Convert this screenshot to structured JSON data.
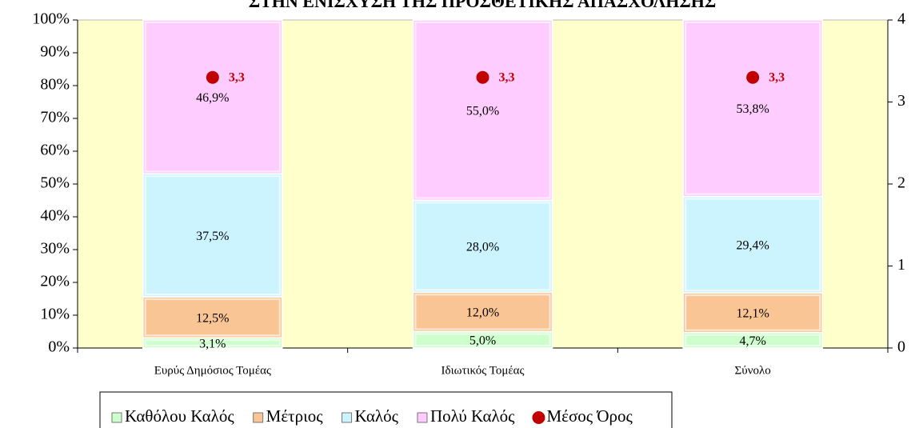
{
  "chart_data": {
    "type": "bar",
    "stacked": true,
    "title": "ΣΤΗΝ ΕΝΙΣΧΥΣΗ ΤΗΣ ΠΡΟΣΘΕΤΙΚΗΣ ΑΠΑΣΧΟΛΗΣΗΣ",
    "categories": [
      "Ευρύς Δημόσιος Τομέας",
      "Ιδιωτικός Τομέας",
      "Σύνολο"
    ],
    "series": [
      {
        "name": "Καθόλου Καλός",
        "color": "#ccffcc",
        "values": [
          3.1,
          5.0,
          4.7
        ],
        "value_labels": [
          "3,1%",
          "5,0%",
          "4,7%"
        ]
      },
      {
        "name": "Μέτριος",
        "color": "#fac595",
        "values": [
          12.5,
          12.0,
          12.1
        ],
        "value_labels": [
          "12,5%",
          "12,0%",
          "12,1%"
        ]
      },
      {
        "name": "Καλός",
        "color": "#ccf4ff",
        "values": [
          37.5,
          28.0,
          29.4
        ],
        "value_labels": [
          "37,5%",
          "28,0%",
          "29,4%"
        ]
      },
      {
        "name": "Πολύ Καλός",
        "color": "#ffccff",
        "values": [
          46.9,
          55.0,
          53.8
        ],
        "value_labels": [
          "46,9%",
          "55,0%",
          "53,8%"
        ]
      },
      {
        "name": "Μέσος Όρος",
        "color": "#c00000",
        "type": "scatter",
        "axis": "y2",
        "values": [
          3.3,
          3.3,
          3.3
        ],
        "value_labels": [
          "3,3",
          "3,3",
          "3,3"
        ]
      }
    ],
    "ylim": [
      0,
      100
    ],
    "yticks": [
      {
        "value": 0,
        "label": "0%"
      },
      {
        "value": 10,
        "label": "10%"
      },
      {
        "value": 20,
        "label": "20%"
      },
      {
        "value": 30,
        "label": "30%"
      },
      {
        "value": 40,
        "label": "40%"
      },
      {
        "value": 50,
        "label": "50%"
      },
      {
        "value": 60,
        "label": "60%"
      },
      {
        "value": 70,
        "label": "70%"
      },
      {
        "value": 80,
        "label": "80%"
      },
      {
        "value": 90,
        "label": "90%"
      },
      {
        "value": 100,
        "label": "100%"
      }
    ],
    "y2lim": [
      0,
      4
    ],
    "y2ticks": [
      0,
      1,
      2,
      3,
      4
    ],
    "plot_background": "#ffffcc"
  }
}
